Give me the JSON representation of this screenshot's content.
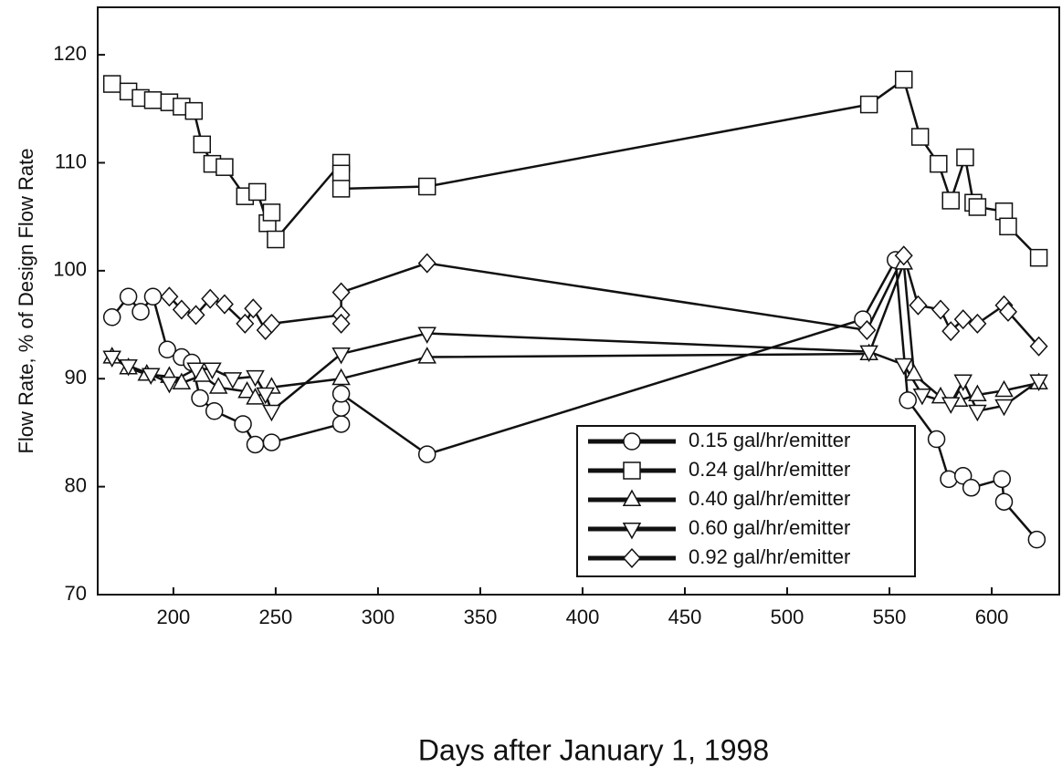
{
  "chart_data": {
    "type": "line",
    "xlabel": "Days after January 1, 1998",
    "ylabel": "Flow Rate, % of Design Flow Rate",
    "xlim": [
      163,
      633
    ],
    "ylim": [
      70,
      124.4
    ],
    "xticks": [
      200,
      250,
      300,
      350,
      400,
      450,
      500,
      550,
      600
    ],
    "yticks": [
      70,
      80,
      90,
      100,
      110,
      120
    ],
    "legend": "lower right",
    "series": [
      {
        "name": "0.15 gal/hr/emitter",
        "marker": "circle",
        "color": "#111111",
        "x": [
          170,
          178,
          184,
          190,
          197,
          204,
          209,
          213,
          220,
          234,
          240,
          248,
          282,
          282,
          282,
          324,
          537,
          553,
          559,
          573,
          579,
          586,
          590,
          605,
          606,
          622
        ],
        "values": [
          95.7,
          97.6,
          96.2,
          97.6,
          92.7,
          92,
          91.5,
          88.2,
          87,
          85.8,
          83.9,
          84.1,
          85.8,
          87.3,
          88.6,
          83,
          95.5,
          101,
          88,
          84.4,
          80.7,
          81,
          79.9,
          80.7,
          78.6,
          75.1
        ]
      },
      {
        "name": "0.24 gal/hr/emitter",
        "marker": "square",
        "color": "#111111",
        "x": [
          170,
          178,
          184,
          190,
          198,
          204,
          210,
          214,
          219,
          225,
          235,
          241,
          246,
          248,
          250,
          282,
          282,
          282,
          324,
          540,
          557,
          565,
          574,
          580,
          587,
          591,
          593,
          606,
          608,
          623
        ],
        "values": [
          117.3,
          116.6,
          116,
          115.8,
          115.6,
          115.2,
          114.8,
          111.7,
          109.9,
          109.6,
          106.9,
          107.3,
          104.4,
          105.4,
          102.9,
          110,
          109,
          107.6,
          107.8,
          115.4,
          117.7,
          112.4,
          109.9,
          106.5,
          110.5,
          106.3,
          105.9,
          105.5,
          104.1,
          101.2
        ]
      },
      {
        "name": "0.40 gal/hr/emitter",
        "marker": "triangle-up",
        "color": "#111111",
        "x": [
          170,
          178,
          187,
          198,
          204,
          214,
          222,
          236,
          240,
          248,
          282,
          324,
          540,
          557,
          562,
          575,
          584,
          593,
          606,
          623
        ],
        "values": [
          92,
          91,
          90.4,
          90.2,
          89.6,
          90.3,
          89.2,
          88.8,
          88.2,
          89.2,
          90,
          92,
          92.3,
          100.7,
          90.4,
          88.3,
          88,
          88.5,
          88.9,
          89.6
        ]
      },
      {
        "name": "0.60 gal/hr/emitter",
        "marker": "triangle-down",
        "color": "#111111",
        "x": [
          170,
          178,
          189,
          198,
          211,
          219,
          229,
          240,
          245,
          248,
          282,
          324,
          540,
          557,
          566,
          580,
          586,
          593,
          606,
          623
        ],
        "values": [
          92,
          91.2,
          90.4,
          89.6,
          90.9,
          90.9,
          90,
          90.2,
          88.6,
          87,
          92.3,
          94.2,
          92.5,
          91.3,
          88.5,
          87.7,
          89.8,
          87,
          87.5,
          89.8
        ]
      },
      {
        "name": "0.92 gal/hr/emitter",
        "marker": "diamond",
        "color": "#111111",
        "x": [
          198,
          204,
          211,
          218,
          225,
          235,
          239,
          245,
          248,
          282,
          282,
          282,
          324,
          539,
          557,
          564,
          575,
          580,
          586,
          593,
          606,
          608,
          623
        ],
        "values": [
          97.6,
          96.4,
          95.9,
          97.4,
          96.9,
          95.1,
          96.5,
          94.5,
          95.1,
          95.9,
          95.1,
          98,
          100.7,
          94.5,
          101.4,
          96.8,
          96.4,
          94.4,
          95.5,
          95.1,
          96.8,
          96.2,
          93
        ]
      }
    ]
  }
}
